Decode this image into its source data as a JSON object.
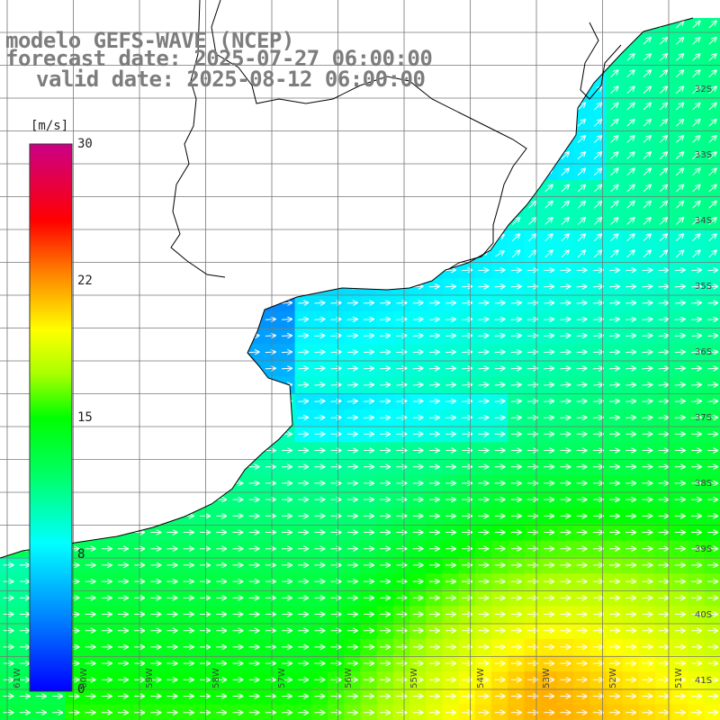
{
  "header": {
    "model": "modelo GEFS-WAVE (NCEP)",
    "forecast": "forecast date: 2025-07-27 06:00:00",
    "valid": "valid date: 2025-08-12 06:00:00"
  },
  "colorbar": {
    "unit": "[m/s]",
    "ticks": [
      "30",
      "22",
      "15",
      "8",
      "0"
    ],
    "colors": [
      "#0000ff",
      "#0088ff",
      "#00ffff",
      "#00ff00",
      "#ffff00",
      "#ff8800",
      "#ff0000",
      "#cc0088"
    ]
  },
  "lat_labels": [
    "32S",
    "33S",
    "34S",
    "35S",
    "36S",
    "37S",
    "38S",
    "39S",
    "40S",
    "41S"
  ],
  "lon_labels": [
    "61W",
    "60W",
    "59W",
    "58W",
    "57W",
    "56W",
    "55W",
    "54W",
    "53W",
    "52W",
    "51W"
  ]
}
